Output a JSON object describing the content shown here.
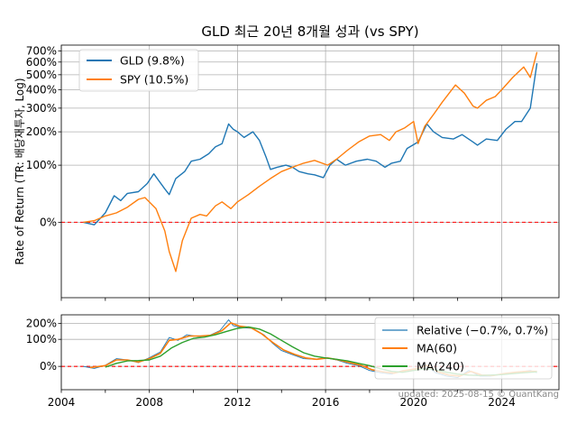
{
  "chart_data": [
    {
      "type": "line",
      "title": "GLD 최근 20년 8개월 성과 (vs SPY)",
      "ylabel": "Rate of Return (TR: 배당재투자, Log)",
      "xlabel": "",
      "y_scale": "log(1+r)",
      "ylim": [
        -60,
        760
      ],
      "xlim": [
        2004.0,
        2026.6
      ],
      "x_ticks": [
        2004,
        2006,
        2008,
        2010,
        2012,
        2014,
        2016,
        2018,
        2020,
        2022,
        2024
      ],
      "x_tick_labels": [
        "2004",
        "",
        "2008",
        "",
        "2012",
        "",
        "2016",
        "",
        "2020",
        "",
        "2024"
      ],
      "y_ticks": [
        0,
        100,
        200,
        300,
        400,
        500,
        600,
        700
      ],
      "y_tick_labels": [
        "0%",
        "100%",
        "200%",
        "300%",
        "400%",
        "500%",
        "600%",
        "700%"
      ],
      "grid": true,
      "legend": "top-left",
      "reference_line": {
        "y": 0,
        "color": "#ff0000",
        "style": "dashed"
      },
      "series": [
        {
          "name": "GLD (9.8%)",
          "color": "#1f77b4",
          "x": [
            2005.0,
            2005.5,
            2006.0,
            2006.4,
            2006.7,
            2007.0,
            2007.5,
            2007.9,
            2008.2,
            2008.7,
            2008.9,
            2009.2,
            2009.6,
            2009.9,
            2010.3,
            2010.7,
            2011.0,
            2011.3,
            2011.6,
            2011.8,
            2012.0,
            2012.3,
            2012.7,
            2013.0,
            2013.3,
            2013.5,
            2013.8,
            2014.2,
            2014.5,
            2014.8,
            2015.2,
            2015.5,
            2015.9,
            2016.2,
            2016.5,
            2016.9,
            2017.4,
            2017.9,
            2018.3,
            2018.7,
            2019.0,
            2019.4,
            2019.7,
            2020.2,
            2020.6,
            2020.9,
            2021.3,
            2021.8,
            2022.2,
            2022.7,
            2022.9,
            2023.3,
            2023.8,
            2024.2,
            2024.6,
            2024.9,
            2025.3,
            2025.6
          ],
          "y": [
            0,
            -3,
            12,
            38,
            30,
            42,
            45,
            60,
            80,
            50,
            40,
            70,
            85,
            110,
            115,
            130,
            150,
            160,
            230,
            210,
            200,
            180,
            200,
            170,
            120,
            90,
            95,
            100,
            95,
            85,
            80,
            78,
            72,
            100,
            115,
            100,
            110,
            115,
            110,
            95,
            105,
            110,
            145,
            165,
            230,
            200,
            180,
            175,
            190,
            165,
            155,
            175,
            170,
            210,
            240,
            240,
            300,
            590
          ]
        },
        {
          "name": "SPY (10.5%)",
          "color": "#ff7f0e",
          "x": [
            2005.0,
            2005.5,
            2006.0,
            2006.5,
            2007.0,
            2007.5,
            2007.8,
            2008.3,
            2008.7,
            2008.9,
            2009.2,
            2009.5,
            2009.9,
            2010.3,
            2010.6,
            2011.0,
            2011.3,
            2011.7,
            2012.0,
            2012.5,
            2013.0,
            2013.5,
            2014.0,
            2014.5,
            2015.0,
            2015.5,
            2016.1,
            2016.5,
            2017.0,
            2017.5,
            2018.0,
            2018.5,
            2018.9,
            2019.2,
            2019.6,
            2020.0,
            2020.2,
            2020.5,
            2020.9,
            2021.3,
            2021.9,
            2022.3,
            2022.7,
            2022.9,
            2023.3,
            2023.7,
            2024.0,
            2024.5,
            2025.0,
            2025.3,
            2025.6
          ],
          "y": [
            0,
            2,
            8,
            12,
            20,
            32,
            35,
            18,
            -10,
            -30,
            -45,
            -20,
            5,
            10,
            8,
            22,
            28,
            18,
            28,
            40,
            55,
            70,
            85,
            95,
            105,
            112,
            100,
            115,
            140,
            165,
            185,
            190,
            170,
            200,
            215,
            240,
            160,
            220,
            270,
            330,
            430,
            380,
            310,
            300,
            340,
            360,
            400,
            480,
            560,
            480,
            690
          ]
        }
      ]
    },
    {
      "type": "line",
      "title": "",
      "ylabel": "",
      "y_scale": "log(1+r)",
      "ylim": [
        -45,
        275
      ],
      "xlim": [
        2004.0,
        2026.6
      ],
      "x_ticks": [
        2004,
        2006,
        2008,
        2010,
        2012,
        2014,
        2016,
        2018,
        2020,
        2022,
        2024
      ],
      "x_tick_labels": [
        "2004",
        "",
        "2008",
        "",
        "2012",
        "",
        "2016",
        "",
        "2020",
        "",
        "2024"
      ],
      "y_ticks": [
        0,
        100,
        200
      ],
      "y_tick_labels": [
        "0%",
        "100%",
        "200%"
      ],
      "grid": true,
      "legend": "top-right",
      "reference_line": {
        "y": 0,
        "color": "#ff0000",
        "style": "dashed"
      },
      "series": [
        {
          "name": "Relative (−0.7%, 0.7%)",
          "color": "#1f77b4",
          "x": [
            2005.0,
            2005.5,
            2006.0,
            2006.5,
            2007.0,
            2007.5,
            2008.0,
            2008.5,
            2008.9,
            2009.3,
            2009.7,
            2010.2,
            2010.7,
            2011.2,
            2011.6,
            2011.8,
            2012.2,
            2012.7,
            2013.2,
            2013.6,
            2014.0,
            2014.5,
            2015.0,
            2015.5,
            2016.0,
            2016.5,
            2017.0,
            2017.5,
            2018.0,
            2018.5,
            2019.0,
            2019.5,
            2020.0,
            2020.5,
            2021.0,
            2021.5,
            2022.0,
            2022.5,
            2023.0,
            2023.5,
            2024.0,
            2024.5,
            2025.0,
            2025.3,
            2025.6
          ],
          "y": [
            0,
            -5,
            3,
            22,
            18,
            10,
            25,
            45,
            110,
            95,
            125,
            115,
            120,
            150,
            230,
            185,
            170,
            165,
            125,
            80,
            50,
            35,
            22,
            20,
            25,
            18,
            8,
            2,
            -10,
            -15,
            -18,
            -10,
            -8,
            5,
            -15,
            -22,
            -25,
            -10,
            -22,
            -22,
            -18,
            -15,
            -12,
            -10,
            -15
          ]
        },
        {
          "name": "MA(60)",
          "color": "#ff7f0e",
          "x": [
            2005.3,
            2006.0,
            2006.5,
            2007.0,
            2007.5,
            2008.0,
            2008.5,
            2008.9,
            2009.3,
            2009.8,
            2010.3,
            2010.8,
            2011.3,
            2011.7,
            2012.1,
            2012.6,
            2013.1,
            2013.6,
            2014.1,
            2014.6,
            2015.1,
            2015.6,
            2016.1,
            2016.6,
            2017.1,
            2017.6,
            2018.1,
            2018.6,
            2019.1,
            2019.6,
            2020.1,
            2020.6,
            2021.1,
            2021.6,
            2022.1,
            2022.6,
            2023.1,
            2023.6,
            2024.1,
            2024.6,
            2025.1,
            2025.6
          ],
          "y": [
            -3,
            2,
            18,
            18,
            12,
            22,
            40,
            95,
            100,
            118,
            118,
            122,
            150,
            205,
            180,
            170,
            130,
            85,
            52,
            36,
            24,
            20,
            24,
            18,
            10,
            3,
            -8,
            -13,
            -16,
            -10,
            -6,
            3,
            -13,
            -20,
            -22,
            -12,
            -20,
            -21,
            -17,
            -14,
            -12,
            -12
          ]
        },
        {
          "name": "MA(240)",
          "color": "#2ca02c",
          "x": [
            2006.0,
            2006.5,
            2007.0,
            2007.5,
            2008.0,
            2008.5,
            2009.0,
            2009.5,
            2010.0,
            2010.5,
            2011.0,
            2011.5,
            2012.0,
            2012.5,
            2013.0,
            2013.5,
            2014.0,
            2014.5,
            2015.0,
            2015.5,
            2016.0,
            2016.5,
            2017.0,
            2017.5,
            2018.0,
            2018.5,
            2019.0,
            2019.5,
            2020.0,
            2020.5,
            2021.0,
            2021.5,
            2022.0,
            2022.5,
            2023.0,
            2023.5,
            2024.0,
            2024.5,
            2025.0,
            2025.6
          ],
          "y": [
            -2,
            8,
            15,
            16,
            18,
            30,
            60,
            85,
            105,
            112,
            125,
            145,
            165,
            175,
            160,
            130,
            95,
            65,
            42,
            30,
            24,
            20,
            15,
            8,
            2,
            -6,
            -12,
            -14,
            -10,
            -6,
            -8,
            -14,
            -18,
            -20,
            -21,
            -20,
            -19,
            -17,
            -15,
            -13
          ]
        }
      ]
    }
  ],
  "footer_note": "updated: 2025-08-15 © QuantKang"
}
